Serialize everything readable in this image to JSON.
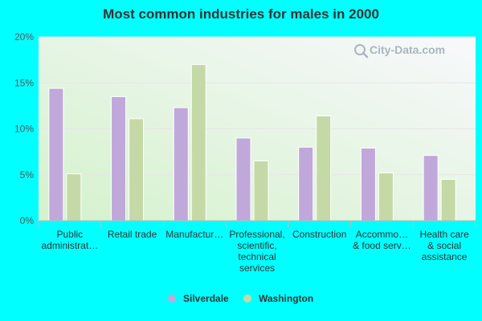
{
  "chart_data": {
    "type": "bar",
    "title": "Most common industries for males in 2000",
    "xlabel": "",
    "ylabel": "",
    "ylim": [
      0,
      20
    ],
    "yticks": [
      "0%",
      "5%",
      "10%",
      "15%",
      "20%"
    ],
    "grid": true,
    "legend_position": "bottom",
    "categories": [
      [
        "Public",
        "administrat…"
      ],
      [
        "Retail trade"
      ],
      [
        "Manufactur…"
      ],
      [
        "Professional,",
        "scientific,",
        "technical",
        "services"
      ],
      [
        "Construction"
      ],
      [
        "Accommo…",
        "& food serv…"
      ],
      [
        "Health care",
        "& social",
        "assistance"
      ]
    ],
    "series": [
      {
        "name": "Silverdale",
        "color": "#c0a8da",
        "values": [
          14.4,
          13.5,
          12.3,
          9.0,
          8.0,
          7.9,
          7.1
        ]
      },
      {
        "name": "Washington",
        "color": "#c5d9a7",
        "values": [
          5.1,
          11.1,
          17.0,
          6.5,
          11.4,
          5.2,
          4.5
        ]
      }
    ]
  },
  "watermark": {
    "text": "City-Data.com",
    "icon": "search-icon"
  },
  "colors": {
    "background": "#00ffff",
    "plot_top": "#f7f7fb",
    "plot_bottom": "#d6f2d0"
  }
}
